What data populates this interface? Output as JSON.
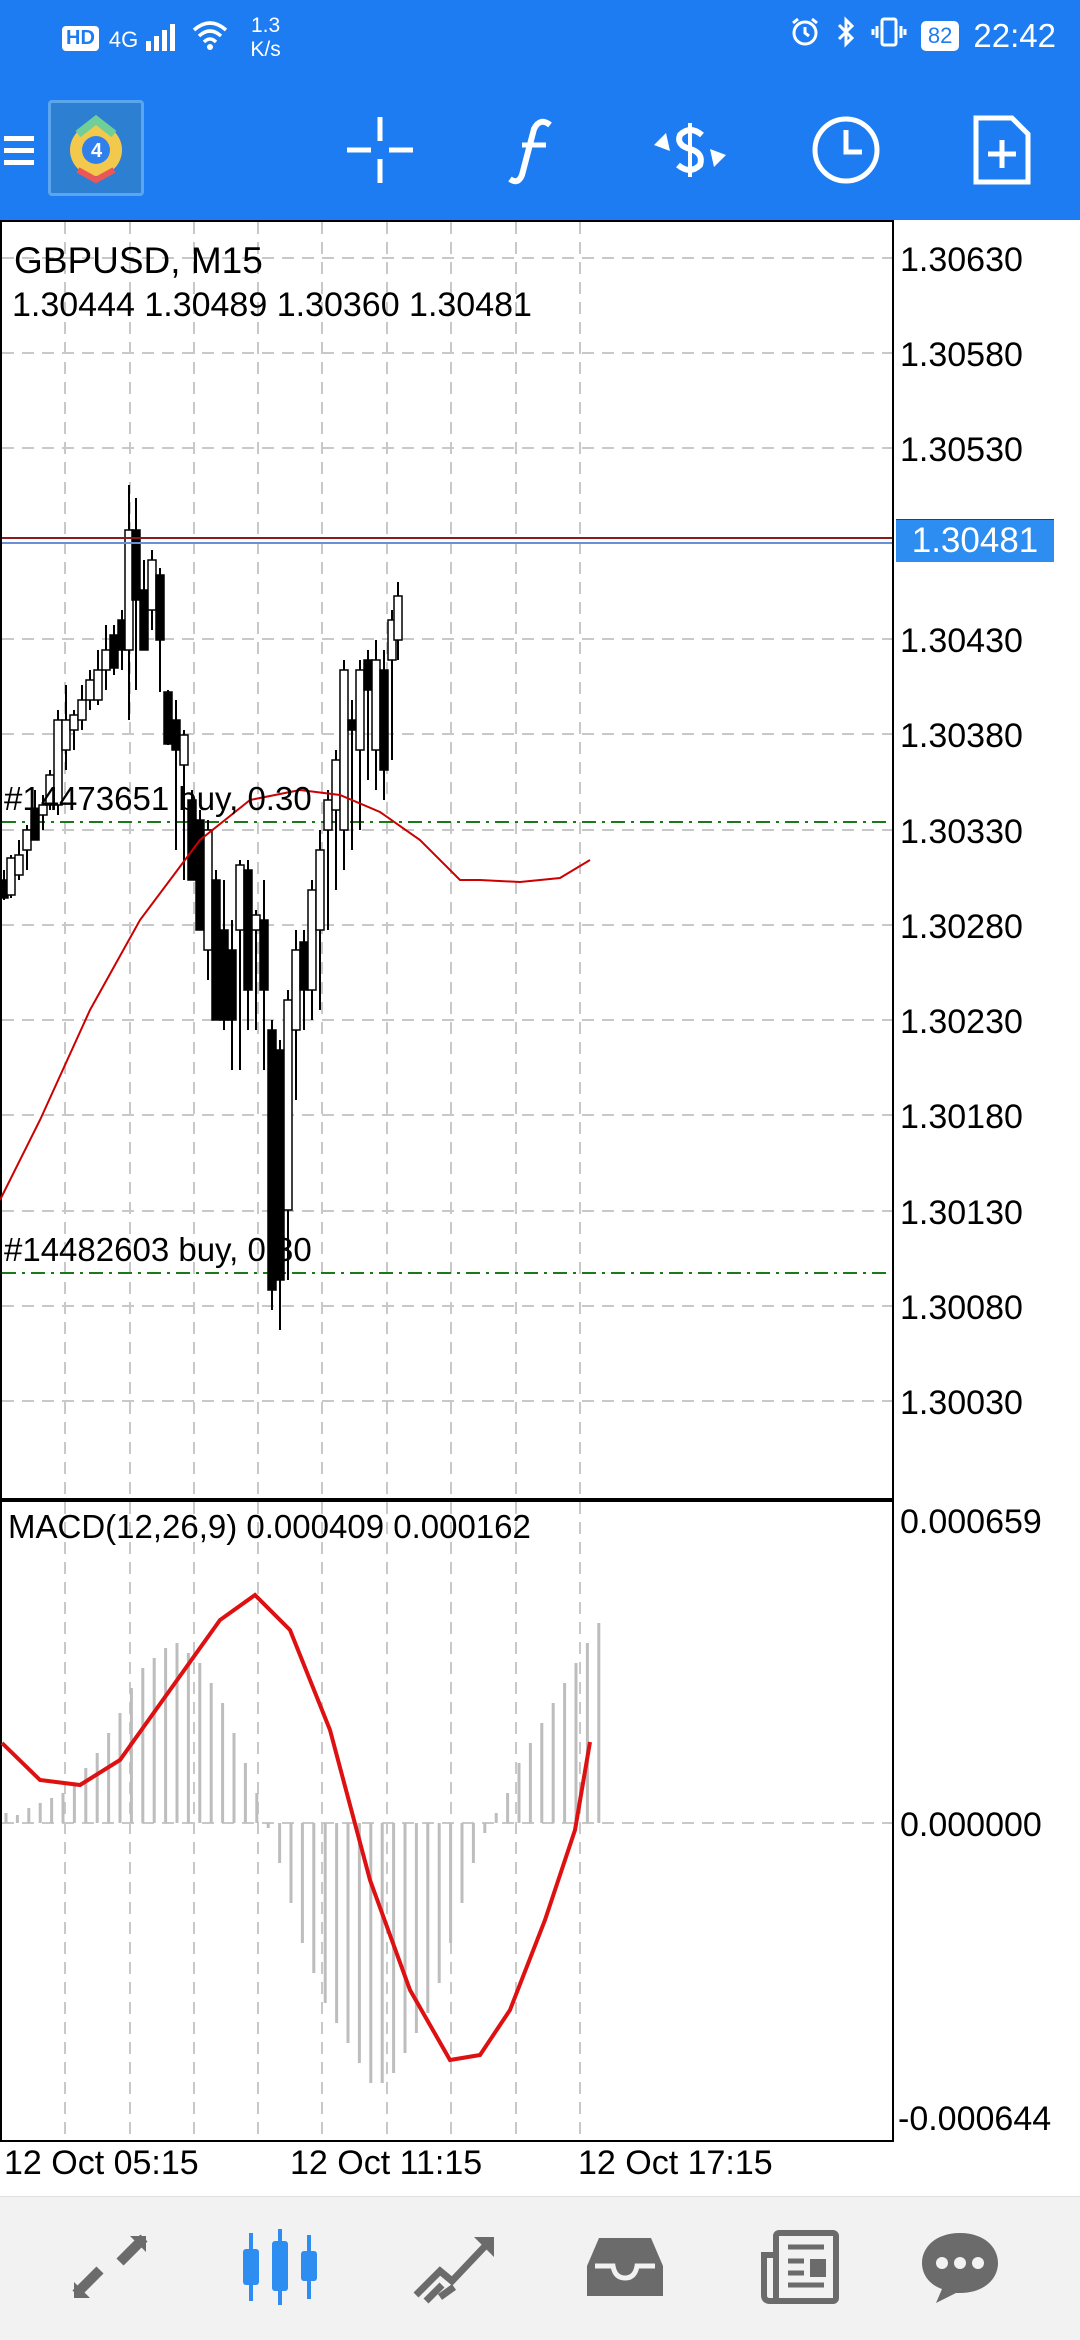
{
  "status_bar": {
    "hd": "HD",
    "signal": "4G",
    "net_speed_value": "1.3",
    "net_speed_unit": "K/s",
    "battery": "82",
    "time": "22:42"
  },
  "toolbar": {
    "icons": [
      "menu-icon",
      "app-logo",
      "crosshair-icon",
      "indicators-icon",
      "trade-icon",
      "timeframe-icon",
      "new-order-icon"
    ]
  },
  "chart": {
    "symbol": "GBPUSD, M15",
    "ohlc": "1.30444 1.30489 1.30360 1.30481",
    "current_price": "1.30481",
    "price_axis": [
      "1.30630",
      "1.30580",
      "1.30530",
      "1.30430",
      "1.30380",
      "1.30330",
      "1.30280",
      "1.30230",
      "1.30180",
      "1.30130",
      "1.30080",
      "1.30030"
    ],
    "orders": [
      {
        "label": "#14473651 buy, 0.30"
      },
      {
        "label": "#14482603 buy, 0.30"
      }
    ],
    "macd": {
      "title": "MACD(12,26,9) 0.000409 0.000162",
      "axis": [
        "0.000659",
        "0.000000",
        "-0.000644"
      ]
    },
    "time_axis": [
      "12 Oct 05:15",
      "12 Oct 11:15",
      "12 Oct 17:15"
    ],
    "colors": {
      "bull": "#ffffff",
      "bear": "#000000",
      "ma": "#cc0000",
      "signal": "#dd1111",
      "order_line": "#1a7a1a",
      "grid": "#c8c8c8",
      "accent": "#1d7cf2"
    }
  },
  "bottom_nav": {
    "items": [
      "quotes-icon",
      "chart-icon",
      "trade-icon",
      "history-icon",
      "news-icon",
      "messages-icon"
    ],
    "active_index": 1
  }
}
